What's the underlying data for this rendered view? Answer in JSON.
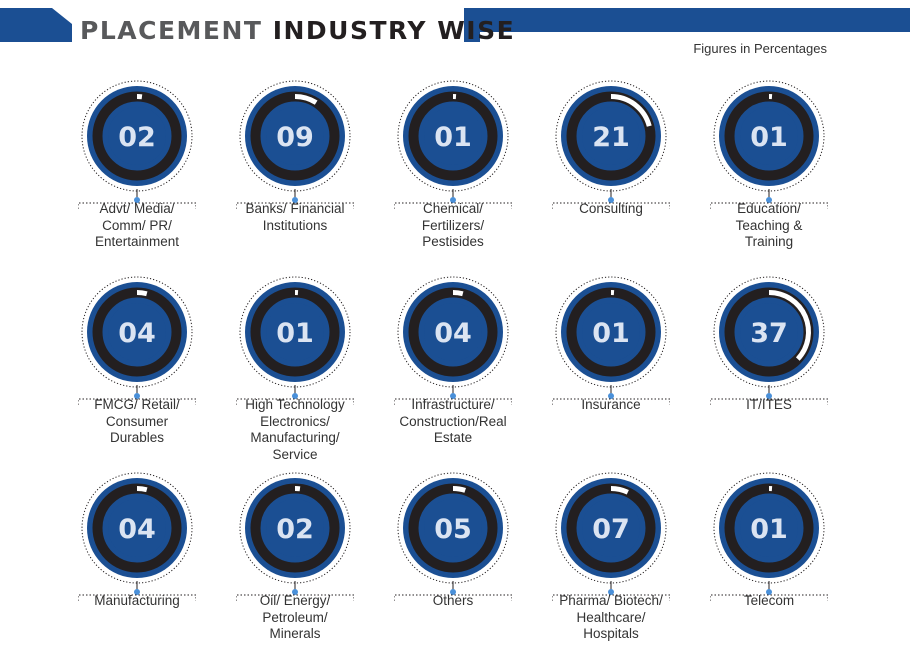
{
  "header": {
    "title_part1": "PLACEMENT",
    "title_part2": "INDUSTRY WISE",
    "subtitle": "Figures in Percentages"
  },
  "colors": {
    "brand_blue": "#1b4f93",
    "ring_dark": "#231f20",
    "progress": "#ffffff",
    "pointer": "#4a90d9"
  },
  "chart_data": {
    "type": "donut-grid",
    "unit": "%",
    "max": 100,
    "items": [
      {
        "label": "Advt/ Media/\nComm/ PR/\nEntertainment",
        "display": "02",
        "value": 2
      },
      {
        "label": "Banks/ Financial\nInstitutions",
        "display": "09",
        "value": 9
      },
      {
        "label": "Chemical/\nFertilizers/\nPestisides",
        "display": "01",
        "value": 1
      },
      {
        "label": "Consulting",
        "display": "21",
        "value": 21
      },
      {
        "label": "Education/\nTeaching &\nTraining",
        "display": "01",
        "value": 1
      },
      {
        "label": "FMCG/ Retail/\nConsumer\nDurables",
        "display": "04",
        "value": 4
      },
      {
        "label": "High Technology\nElectronics/\nManufacturing/\nService",
        "display": "01",
        "value": 1
      },
      {
        "label": "Infrastructure/\nConstruction/Real\nEstate",
        "display": "04",
        "value": 4
      },
      {
        "label": "Insurance",
        "display": "01",
        "value": 1
      },
      {
        "label": "IT/ITES",
        "display": "37",
        "value": 37
      },
      {
        "label": "Manufacturing",
        "display": "04",
        "value": 4
      },
      {
        "label": "Oil/ Energy/\nPetroleum/\nMinerals",
        "display": "02",
        "value": 2
      },
      {
        "label": "Others",
        "display": "05",
        "value": 5
      },
      {
        "label": "Pharma/ Biotech/\nHealthcare/\nHospitals",
        "display": "07",
        "value": 7
      },
      {
        "label": "Telecom",
        "display": "01",
        "value": 1
      }
    ]
  }
}
